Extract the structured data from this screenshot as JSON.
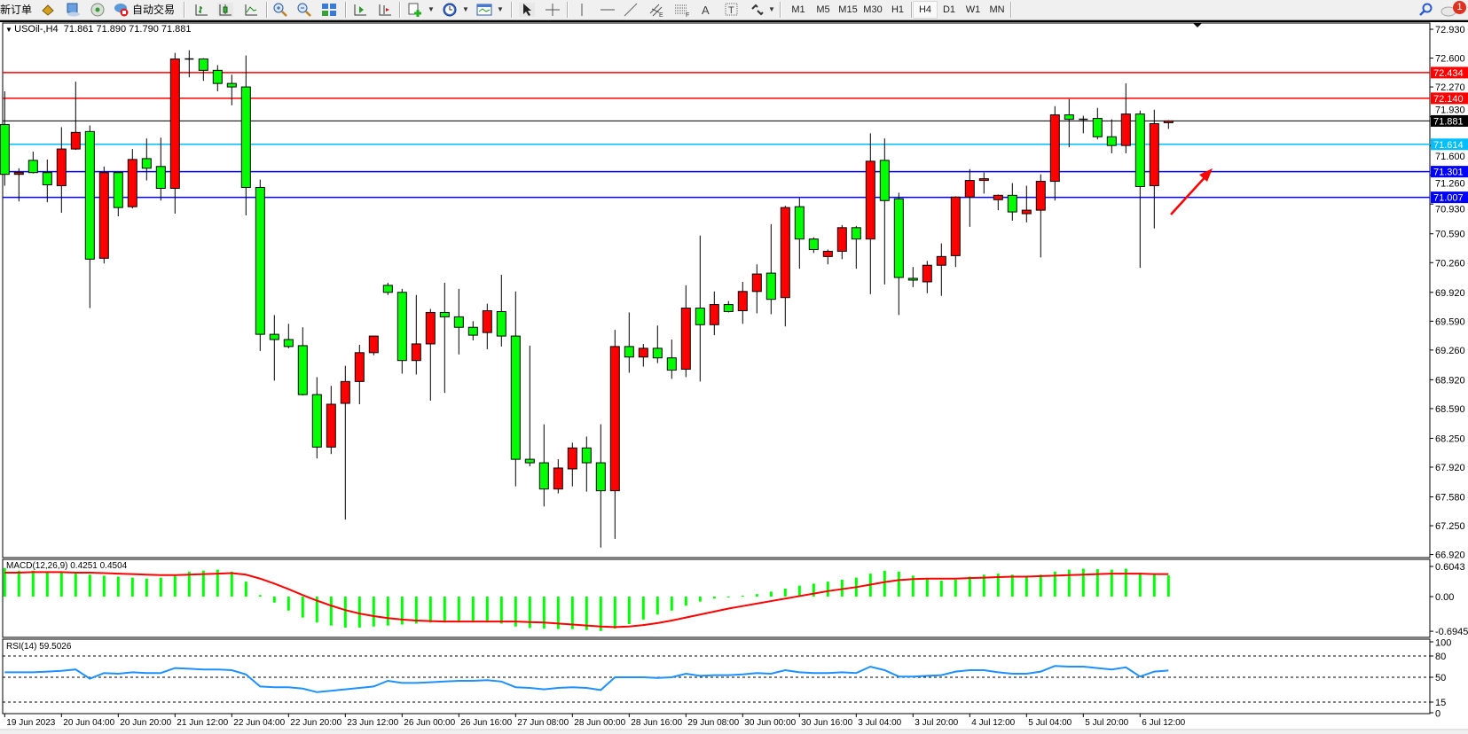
{
  "toolbar": {
    "new_order": "新订单",
    "auto_trading": "自动交易",
    "timeframes": [
      "M1",
      "M5",
      "M15",
      "M30",
      "H1",
      "H4",
      "D1",
      "W1",
      "MN"
    ],
    "active_timeframe": "H4",
    "notification_count": "1",
    "icons": [
      "metaquotes-language-icon",
      "market-watch-icon",
      "signals-icon",
      "auto-trading-icon",
      "bar-chart-icon",
      "candlestick-icon",
      "line-chart-icon",
      "zoom-in-icon",
      "zoom-out-icon",
      "tile-windows-icon",
      "auto-scroll-icon",
      "chart-shift-icon",
      "new-chart-icon",
      "periods-icon",
      "templates-icon",
      "cursor-icon",
      "crosshair-icon",
      "vertical-line-icon",
      "horizontal-line-icon",
      "trendline-icon",
      "equidistant-channel-icon",
      "fibonacci-icon",
      "text-icon",
      "text-label-icon",
      "arrows-icon",
      "search-icon",
      "notification-icon"
    ]
  },
  "chart": {
    "header": {
      "symbol": "USOil-,H4",
      "ohlc": "71.861 71.890 71.790 71.881"
    }
  },
  "chart_data": [
    {
      "type": "candlestick",
      "title": "USOil-,H4",
      "ylim": [
        66.885,
        73.0
      ],
      "grid": false,
      "up_color": "#ff0000",
      "down_color": "#00ff00",
      "y_tick_labels": [
        "72.930",
        "72.600",
        "72.270",
        "71.930",
        "71.600",
        "71.260",
        "70.930",
        "70.590",
        "70.260",
        "69.920",
        "69.590",
        "69.260",
        "68.920",
        "68.590",
        "68.250",
        "67.920",
        "67.580",
        "67.250",
        "66.920"
      ],
      "x_tick_labels": [
        "19 Jun 2023",
        "20 Jun 04:00",
        "20 Jun 20:00",
        "21 Jun 12:00",
        "22 Jun 04:00",
        "22 Jun 20:00",
        "23 Jun 12:00",
        "26 Jun 00:00",
        "26 Jun 16:00",
        "27 Jun 08:00",
        "28 Jun 00:00",
        "28 Jun 16:00",
        "29 Jun 08:00",
        "30 Jun 00:00",
        "30 Jun 16:00",
        "3 Jul 04:00",
        "3 Jul 20:00",
        "4 Jul 12:00",
        "5 Jul 04:00",
        "5 Jul 20:00",
        "6 Jul 12:00"
      ],
      "ohlc_order": [
        "open",
        "high",
        "low",
        "close"
      ],
      "ohlc": [
        [
          71.84,
          72.22,
          71.14,
          71.27
        ],
        [
          71.27,
          71.34,
          70.96,
          71.29
        ],
        [
          71.43,
          71.53,
          71.28,
          71.29
        ],
        [
          71.29,
          71.44,
          70.95,
          71.15
        ],
        [
          71.14,
          71.81,
          70.83,
          71.56
        ],
        [
          71.56,
          72.33,
          71.55,
          71.75
        ],
        [
          71.76,
          71.83,
          69.74,
          70.3
        ],
        [
          70.31,
          71.36,
          70.25,
          71.29
        ],
        [
          71.29,
          71.29,
          70.79,
          70.89
        ],
        [
          70.9,
          71.56,
          70.88,
          71.44
        ],
        [
          71.45,
          71.68,
          71.2,
          71.34
        ],
        [
          71.36,
          71.69,
          70.97,
          71.11
        ],
        [
          71.11,
          72.66,
          70.82,
          72.59
        ],
        [
          72.59,
          72.69,
          72.38,
          72.59
        ],
        [
          72.59,
          72.6,
          72.34,
          72.46
        ],
        [
          72.46,
          72.52,
          72.22,
          72.31
        ],
        [
          72.31,
          72.41,
          72.06,
          72.27
        ],
        [
          72.27,
          72.63,
          70.8,
          71.12
        ],
        [
          71.12,
          71.21,
          69.25,
          69.44
        ],
        [
          69.44,
          69.66,
          68.91,
          69.38
        ],
        [
          69.38,
          69.56,
          69.28,
          69.3
        ],
        [
          69.31,
          69.52,
          68.74,
          68.75
        ],
        [
          68.75,
          68.95,
          68.02,
          68.15
        ],
        [
          68.15,
          68.85,
          68.07,
          68.64
        ],
        [
          68.65,
          69.08,
          67.32,
          68.9
        ],
        [
          68.9,
          69.32,
          68.64,
          69.23
        ],
        [
          69.23,
          69.42,
          69.2,
          69.42
        ],
        [
          70.0,
          70.03,
          69.89,
          69.92
        ],
        [
          69.92,
          69.96,
          68.99,
          69.14
        ],
        [
          69.14,
          69.89,
          68.98,
          69.33
        ],
        [
          69.33,
          69.73,
          68.68,
          69.69
        ],
        [
          69.69,
          70.03,
          68.77,
          69.64
        ],
        [
          69.64,
          69.96,
          69.21,
          69.52
        ],
        [
          69.52,
          69.59,
          69.37,
          69.43
        ],
        [
          69.46,
          69.79,
          69.27,
          69.71
        ],
        [
          69.7,
          70.12,
          69.3,
          69.42
        ],
        [
          69.42,
          69.93,
          67.7,
          68.01
        ],
        [
          68.01,
          69.31,
          67.93,
          67.97
        ],
        [
          67.97,
          68.41,
          67.47,
          67.67
        ],
        [
          67.67,
          68.01,
          67.62,
          67.91
        ],
        [
          67.9,
          68.2,
          67.7,
          68.14
        ],
        [
          68.14,
          68.27,
          67.64,
          67.97
        ],
        [
          67.97,
          68.41,
          67.0,
          67.65
        ],
        [
          67.65,
          69.49,
          67.1,
          69.3
        ],
        [
          69.3,
          69.69,
          69.0,
          69.18
        ],
        [
          69.18,
          69.33,
          69.07,
          69.28
        ],
        [
          69.28,
          69.54,
          69.11,
          69.17
        ],
        [
          69.17,
          69.38,
          68.93,
          69.03
        ],
        [
          69.04,
          70.0,
          68.95,
          69.74
        ],
        [
          69.74,
          70.57,
          68.9,
          69.55
        ],
        [
          69.55,
          69.93,
          69.43,
          69.78
        ],
        [
          69.78,
          69.82,
          69.69,
          69.7
        ],
        [
          69.71,
          70.04,
          69.56,
          69.93
        ],
        [
          69.93,
          70.24,
          69.68,
          70.13
        ],
        [
          70.14,
          70.7,
          69.67,
          69.84
        ],
        [
          69.86,
          70.91,
          69.53,
          70.89
        ],
        [
          70.9,
          71.0,
          70.19,
          70.53
        ],
        [
          70.53,
          70.55,
          70.37,
          70.41
        ],
        [
          70.33,
          70.41,
          70.24,
          70.39
        ],
        [
          70.39,
          70.69,
          70.3,
          70.66
        ],
        [
          70.66,
          70.68,
          70.19,
          70.53
        ],
        [
          70.53,
          71.74,
          69.9,
          71.42
        ],
        [
          71.43,
          71.68,
          70.01,
          70.97
        ],
        [
          70.99,
          71.06,
          69.66,
          70.09
        ],
        [
          70.08,
          70.21,
          69.98,
          70.06
        ],
        [
          70.04,
          70.28,
          69.91,
          70.23
        ],
        [
          70.23,
          70.48,
          69.88,
          70.33
        ],
        [
          70.34,
          71.02,
          70.21,
          71.01
        ],
        [
          71.01,
          71.33,
          70.67,
          71.2
        ],
        [
          71.2,
          71.29,
          71.05,
          71.22
        ],
        [
          70.98,
          71.04,
          70.86,
          71.03
        ],
        [
          71.03,
          71.17,
          70.74,
          70.84
        ],
        [
          70.82,
          71.14,
          70.72,
          70.86
        ],
        [
          70.86,
          71.27,
          70.32,
          71.19
        ],
        [
          71.19,
          72.05,
          70.97,
          71.95
        ],
        [
          71.95,
          72.13,
          71.58,
          71.9
        ],
        [
          71.9,
          71.94,
          71.74,
          71.9
        ],
        [
          71.91,
          72.03,
          71.67,
          71.7
        ],
        [
          71.7,
          71.9,
          71.51,
          71.6
        ],
        [
          71.6,
          72.31,
          71.51,
          71.96
        ],
        [
          71.96,
          72.0,
          70.2,
          71.13
        ],
        [
          71.14,
          72.01,
          70.65,
          71.85
        ],
        [
          71.861,
          71.89,
          71.79,
          71.881
        ]
      ],
      "horizontal_lines": [
        {
          "price": "72.434",
          "color": "#ff0000"
        },
        {
          "price": "72.140",
          "color": "#ff0000"
        },
        {
          "price": "71.614",
          "color": "#00bfff"
        },
        {
          "price": "71.301",
          "color": "#0000ff"
        },
        {
          "price": "71.007",
          "color": "#0000ff"
        }
      ],
      "bid_line": {
        "price": "71.881",
        "color": "#000000"
      },
      "annotation": {
        "type": "arrow",
        "color": "#ff0000",
        "direction": "up-right"
      }
    },
    {
      "type": "bar",
      "label": "MACD(12,26,9) 0.4251 0.4504",
      "ylim": [
        -0.6945,
        0.6043
      ],
      "y_tick_labels": [
        "0.6043",
        "0.00",
        "-0.6945"
      ],
      "histogram_color": "#00ff00",
      "signal_color": "#ff0000",
      "histogram": [
        0.57,
        0.52,
        0.52,
        0.5,
        0.48,
        0.46,
        0.44,
        0.42,
        0.4,
        0.38,
        0.36,
        0.38,
        0.44,
        0.5,
        0.52,
        0.54,
        0.5,
        0.3,
        0.03,
        -0.12,
        -0.28,
        -0.42,
        -0.52,
        -0.58,
        -0.62,
        -0.62,
        -0.6,
        -0.58,
        -0.56,
        -0.54,
        -0.52,
        -0.52,
        -0.52,
        -0.52,
        -0.52,
        -0.54,
        -0.6,
        -0.63,
        -0.64,
        -0.65,
        -0.65,
        -0.67,
        -0.69,
        -0.64,
        -0.55,
        -0.46,
        -0.36,
        -0.28,
        -0.18,
        -0.1,
        -0.04,
        0.0,
        0.02,
        0.05,
        0.1,
        0.16,
        0.22,
        0.26,
        0.3,
        0.34,
        0.38,
        0.46,
        0.52,
        0.5,
        0.42,
        0.36,
        0.32,
        0.34,
        0.4,
        0.44,
        0.46,
        0.44,
        0.42,
        0.44,
        0.5,
        0.54,
        0.56,
        0.55,
        0.54,
        0.56,
        0.48,
        0.44,
        0.4251
      ],
      "signal": [
        0.48,
        0.48,
        0.49,
        0.49,
        0.49,
        0.48,
        0.48,
        0.47,
        0.46,
        0.45,
        0.44,
        0.43,
        0.43,
        0.44,
        0.45,
        0.46,
        0.47,
        0.44,
        0.36,
        0.26,
        0.15,
        0.03,
        -0.08,
        -0.18,
        -0.27,
        -0.34,
        -0.39,
        -0.43,
        -0.46,
        -0.48,
        -0.49,
        -0.5,
        -0.5,
        -0.5,
        -0.5,
        -0.5,
        -0.5,
        -0.51,
        -0.52,
        -0.54,
        -0.56,
        -0.58,
        -0.6,
        -0.61,
        -0.6,
        -0.57,
        -0.53,
        -0.48,
        -0.42,
        -0.36,
        -0.3,
        -0.24,
        -0.19,
        -0.14,
        -0.09,
        -0.04,
        0.01,
        0.06,
        0.11,
        0.15,
        0.19,
        0.24,
        0.29,
        0.33,
        0.35,
        0.36,
        0.36,
        0.36,
        0.37,
        0.38,
        0.39,
        0.4,
        0.4,
        0.41,
        0.42,
        0.43,
        0.44,
        0.45,
        0.46,
        0.46,
        0.46,
        0.45,
        0.4504
      ]
    },
    {
      "type": "line",
      "label": "RSI(14) 59.5026",
      "ylim": [
        0,
        100
      ],
      "y_tick_labels": [
        "100",
        "80",
        "50",
        "15",
        "0"
      ],
      "levels": [
        80,
        50,
        15
      ],
      "color": "#1e90ff",
      "values": [
        57,
        57,
        57,
        58,
        59,
        61,
        48,
        56,
        55,
        57,
        56,
        56,
        63,
        62,
        61,
        61,
        60,
        54,
        37,
        36,
        36,
        34,
        29,
        31,
        33,
        35,
        37,
        45,
        42,
        42,
        43,
        44,
        45,
        45,
        46,
        44,
        36,
        35,
        33,
        35,
        36,
        35,
        32,
        50,
        50,
        50,
        49,
        50,
        55,
        52,
        53,
        53,
        54,
        56,
        55,
        60,
        57,
        56,
        56,
        57,
        56,
        65,
        60,
        51,
        51,
        52,
        53,
        58,
        60,
        60,
        57,
        55,
        55,
        58,
        66,
        65,
        65,
        63,
        61,
        64,
        51,
        58,
        59.5026
      ]
    }
  ]
}
